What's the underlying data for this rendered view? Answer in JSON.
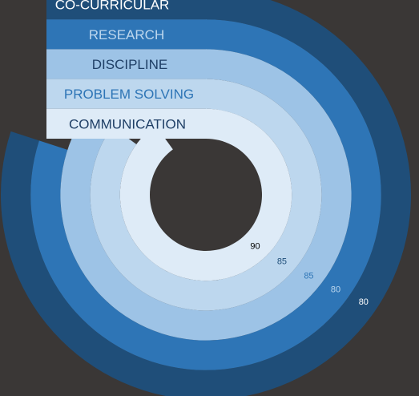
{
  "chart_data": {
    "type": "radial-bar",
    "max_value": 100,
    "series": [
      {
        "name": "CO-CURRICULAR",
        "value": 80,
        "color": "#1f4e79",
        "label_color": "#ffffff",
        "value_color": "#ffffff"
      },
      {
        "name": "RESEARCH",
        "value": 80,
        "color": "#2e75b6",
        "label_color": "#bdd7ee",
        "value_color": "#bdd7ee"
      },
      {
        "name": "DISCIPLINE",
        "value": 85,
        "color": "#9dc3e6",
        "label_color": "#1f3f66",
        "value_color": "#2e75b6"
      },
      {
        "name": "PROBLEM SOLVING",
        "value": 85,
        "color": "#bdd7ee",
        "label_color": "#2e75b6",
        "value_color": "#1f4e79"
      },
      {
        "name": "COMMUNICATION",
        "value": 90,
        "color": "#deebf7",
        "label_color": "#1f3f66",
        "value_color": "#000000"
      }
    ]
  }
}
